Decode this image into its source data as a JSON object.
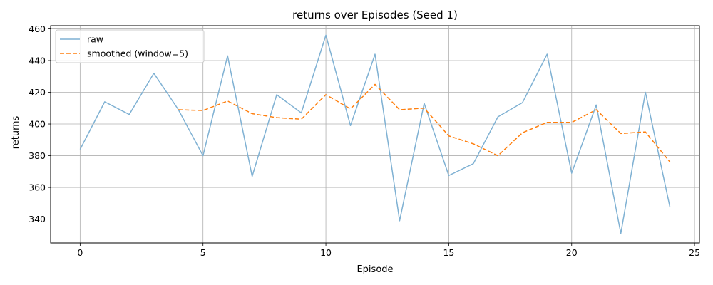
{
  "chart_data": {
    "type": "line",
    "title": "returns over Episodes (Seed 1)",
    "xlabel": "Episode",
    "ylabel": "returns",
    "xlim": [
      -1.2,
      25.2
    ],
    "ylim": [
      325,
      462
    ],
    "xticks": [
      0,
      5,
      10,
      15,
      20,
      25
    ],
    "yticks": [
      340,
      360,
      380,
      400,
      420,
      440,
      460
    ],
    "grid": true,
    "legend_position": "top-left",
    "series": [
      {
        "name": "raw",
        "color": "#7fb1d3",
        "style": "solid",
        "x": [
          0,
          1,
          2,
          3,
          4,
          5,
          6,
          7,
          8,
          9,
          10,
          11,
          12,
          13,
          14,
          15,
          16,
          17,
          18,
          19,
          20,
          21,
          22,
          23,
          24
        ],
        "y": [
          384,
          414,
          406,
          432,
          409,
          380,
          443,
          367,
          418.5,
          407,
          456,
          399,
          444,
          339,
          413,
          367.5,
          375,
          404.5,
          413.5,
          444,
          369,
          412,
          331,
          420,
          347.5
        ]
      },
      {
        "name": "smoothed (window=5)",
        "color": "#ff7f0e",
        "style": "dashed",
        "x": [
          4,
          5,
          6,
          7,
          8,
          9,
          10,
          11,
          12,
          13,
          14,
          15,
          16,
          17,
          18,
          19,
          20,
          21,
          22,
          23,
          24
        ],
        "y": [
          409,
          408.5,
          414.5,
          406.5,
          404,
          403,
          418.5,
          409.5,
          425,
          409,
          410,
          392.5,
          387.5,
          380,
          394.5,
          401,
          401,
          409,
          394,
          395,
          376
        ]
      }
    ]
  }
}
